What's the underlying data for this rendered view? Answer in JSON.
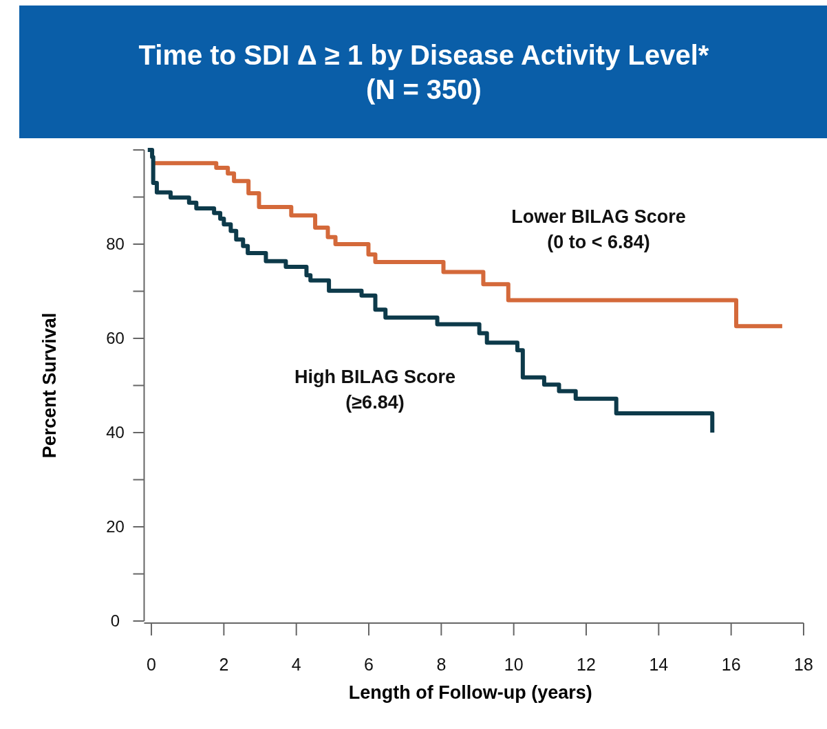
{
  "chart_data": {
    "type": "step",
    "title": "Time to SDI Δ ≥ 1 by Disease Activity Level*\n(N = 350)",
    "xlabel": "Length of Follow-up (years)",
    "ylabel": "Percent Survival",
    "xlim": [
      -0.2,
      18
    ],
    "ylim": [
      0,
      100
    ],
    "xticks": [
      0,
      2,
      4,
      6,
      8,
      10,
      12,
      14,
      16,
      18
    ],
    "yticks": [
      0,
      {
        "value": 10,
        "label": null
      },
      20,
      {
        "value": 30,
        "label": null
      },
      40,
      {
        "value": 50,
        "label": null
      },
      60,
      {
        "value": 70,
        "label": null
      },
      80,
      {
        "value": 90,
        "label": null
      },
      {
        "value": 100,
        "label": null
      }
    ],
    "grid": false,
    "marker": "none",
    "line_style": "solid",
    "series": [
      {
        "name": "Lower BILAG Score\n(0 to < 6.84)",
        "color": "#d4693a",
        "x": [
          0,
          1.79,
          2.11,
          2.28,
          2.68,
          2.97,
          3.86,
          4.52,
          4.87,
          5.08,
          5.99,
          6.18,
          8.06,
          9.16,
          9.85,
          16.14,
          17.41
        ],
        "values": [
          97.2,
          96.2,
          95.0,
          93.4,
          90.8,
          87.9,
          86.1,
          83.5,
          81.5,
          80.0,
          77.8,
          76.2,
          74.1,
          71.5,
          68.1,
          62.6,
          62.6
        ]
      },
      {
        "name": "High BILAG Score\n(≥6.84)",
        "color": "#0d3a4a",
        "x": [
          -0.1,
          0.02,
          0.05,
          0.15,
          0.53,
          1.04,
          1.24,
          1.73,
          1.9,
          2.0,
          2.19,
          2.34,
          2.53,
          2.66,
          3.16,
          3.71,
          4.28,
          4.39,
          4.9,
          5.8,
          6.18,
          6.46,
          7.89,
          9.05,
          9.26,
          10.1,
          10.25,
          10.84,
          11.25,
          11.71,
          12.83,
          15.48,
          15.48
        ],
        "values": [
          100,
          98.5,
          93,
          91.0,
          89.9,
          88.8,
          87.6,
          86.6,
          85.4,
          84.2,
          82.8,
          81.0,
          79.6,
          78.1,
          76.4,
          75.2,
          73.4,
          72.3,
          70.1,
          69.1,
          66.1,
          64.4,
          63.0,
          61.1,
          59.1,
          57.5,
          51.7,
          50.2,
          48.8,
          47.2,
          44.1,
          44.1,
          40.0
        ]
      }
    ]
  }
}
